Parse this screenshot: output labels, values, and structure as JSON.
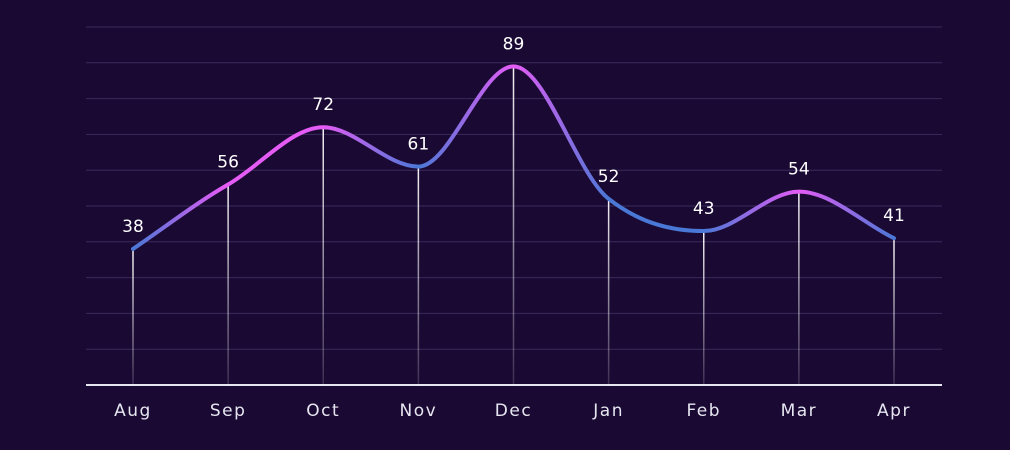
{
  "chart_data": {
    "type": "line",
    "categories": [
      "Aug",
      "Sep",
      "Oct",
      "Nov",
      "Dec",
      "Jan",
      "Feb",
      "Mar",
      "Apr"
    ],
    "values": [
      38,
      56,
      72,
      61,
      89,
      52,
      43,
      54,
      41
    ],
    "ylim": [
      0,
      100
    ],
    "grid": true,
    "legend": "none"
  },
  "colors": {
    "background": "#1a0933",
    "grid": "#3b2b5c",
    "line_accent": "#e45cf5",
    "line_secondary": "#4a78d6",
    "label": "#e6e6f0"
  }
}
